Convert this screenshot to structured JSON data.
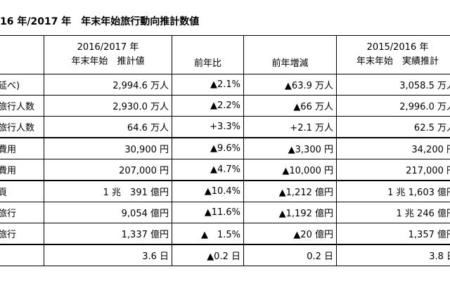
{
  "title": "16 年/2017 年　年末年始旅行動向推計数値",
  "headers": {
    "col1_line1": "2016/2017 年",
    "col1_line2": "年末年始　推計値",
    "col2": "前年比",
    "col3": "前年増減",
    "col4_line1": "2015/2016 年",
    "col4_line2": "年末年始　実績推計"
  },
  "rows": [
    {
      "label": "延べ)",
      "est": "2,994.6 万人",
      "yoy": "▲2.1%",
      "diff": "▲63.9 万人",
      "prev": "3,058.5 万人"
    },
    {
      "label": "旅行人数",
      "est": "2,930.0 万人",
      "yoy": "▲2.2%",
      "diff": "▲66 万人",
      "prev": "2,996.0 万人"
    },
    {
      "label": "旅行人数",
      "est": "64.6 万人",
      "yoy": "+3.3%",
      "diff": "+2.1 万人",
      "prev": "62.5 万人"
    },
    {
      "label": "費用",
      "est": "30,900 円",
      "yoy": "▲9.6%",
      "diff": "▲3,300 円",
      "prev": "34,200 円"
    },
    {
      "label": "費用",
      "est": "207,000 円",
      "yoy": "▲4.7%",
      "diff": "▲10,000 円",
      "prev": "217,000 円"
    },
    {
      "label": "頁",
      "est": "1 兆　391 億円",
      "yoy": "▲10.4%",
      "diff": "▲1,212 億円",
      "prev": "1 兆 1,603 億円"
    },
    {
      "label": "旅行",
      "est": "9,054 億円",
      "yoy": "▲11.6%",
      "diff": "▲1,192 億円",
      "prev": "1 兆 246 億円"
    },
    {
      "label": "旅行",
      "est": "1,337 億円",
      "yoy": "▲　1.5%",
      "diff": "▲20 億円",
      "prev": "1,357 億円"
    },
    {
      "label": "",
      "est": "3.6 日",
      "yoy": "▲0.2 日",
      "diff": "0.2 日",
      "prev": "3.8 日"
    }
  ]
}
